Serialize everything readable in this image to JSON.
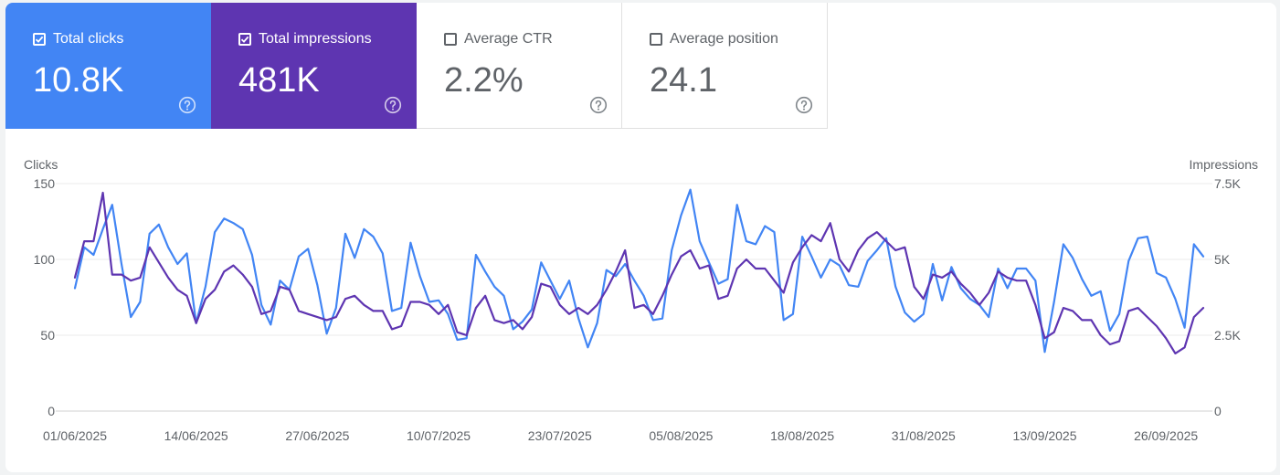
{
  "colors": {
    "clicks": "#4285f4",
    "impressions": "#5e35b1",
    "grid": "#ebebeb"
  },
  "metrics": {
    "clicks": {
      "label": "Total clicks",
      "value": "10.8K",
      "checked": true
    },
    "impressions": {
      "label": "Total impressions",
      "value": "481K",
      "checked": true
    },
    "ctr": {
      "label": "Average CTR",
      "value": "2.2%",
      "checked": false
    },
    "position": {
      "label": "Average position",
      "value": "24.1",
      "checked": false
    }
  },
  "chart_data": {
    "type": "line",
    "left_axis": {
      "label": "Clicks",
      "ylim": [
        0,
        150
      ],
      "ticks": [
        "0",
        "50",
        "100",
        "150"
      ],
      "tick_values": [
        0,
        50,
        100,
        150
      ]
    },
    "right_axis": {
      "label": "Impressions",
      "ylim": [
        0,
        7500
      ],
      "ticks": [
        "0",
        "2.5K",
        "5K",
        "7.5K"
      ],
      "tick_values": [
        0,
        2500,
        5000,
        7500
      ]
    },
    "x_tick_labels": [
      "01/06/2025",
      "14/06/2025",
      "27/06/2025",
      "10/07/2025",
      "23/07/2025",
      "05/08/2025",
      "18/08/2025",
      "31/08/2025",
      "13/09/2025",
      "26/09/2025"
    ],
    "x_tick_indices": [
      0,
      13,
      26,
      39,
      52,
      65,
      78,
      91,
      104,
      117
    ],
    "series": [
      {
        "name": "Clicks",
        "axis": "left",
        "values": [
          81,
          108,
          103,
          120,
          136,
          97,
          62,
          72,
          117,
          123,
          108,
          97,
          104,
          58,
          82,
          118,
          127,
          124,
          120,
          103,
          70,
          57,
          86,
          80,
          102,
          107,
          83,
          51,
          68,
          117,
          101,
          120,
          115,
          104,
          66,
          68,
          111,
          89,
          72,
          73,
          64,
          47,
          48,
          103,
          92,
          82,
          76,
          54,
          59,
          67,
          98,
          86,
          74,
          86,
          61,
          42,
          58,
          93,
          89,
          97,
          86,
          76,
          60,
          61,
          106,
          129,
          146,
          112,
          98,
          84,
          87,
          136,
          112,
          110,
          122,
          118,
          60,
          64,
          115,
          102,
          88,
          100,
          96,
          83,
          82,
          99,
          106,
          114,
          82,
          65,
          59,
          64,
          97,
          73,
          95,
          81,
          74,
          70,
          62,
          94,
          81,
          94,
          94,
          86,
          39,
          72,
          110,
          101,
          87,
          76,
          79,
          53,
          64,
          99,
          114,
          115,
          91,
          88,
          74,
          55,
          110,
          102
        ],
        "color": "#4285f4"
      },
      {
        "name": "Impressions",
        "axis": "right",
        "values": [
          4400,
          5600,
          5600,
          7200,
          4500,
          4500,
          4300,
          4400,
          5400,
          4900,
          4400,
          4000,
          3800,
          2900,
          3700,
          4000,
          4600,
          4800,
          4500,
          4100,
          3200,
          3300,
          4100,
          4000,
          3300,
          3200,
          3100,
          3000,
          3100,
          3700,
          3800,
          3500,
          3300,
          3300,
          2700,
          2800,
          3600,
          3600,
          3500,
          3200,
          3500,
          2600,
          2500,
          3400,
          3800,
          3000,
          2900,
          3000,
          2700,
          3100,
          4200,
          4100,
          3500,
          3200,
          3400,
          3200,
          3500,
          4000,
          4600,
          5300,
          3400,
          3500,
          3200,
          3800,
          4500,
          5100,
          5300,
          4700,
          4800,
          3700,
          3800,
          4700,
          5000,
          4700,
          4700,
          4300,
          3900,
          4900,
          5400,
          5800,
          5600,
          6200,
          5000,
          4600,
          5300,
          5700,
          5900,
          5600,
          5300,
          5400,
          4100,
          3700,
          4500,
          4400,
          4600,
          4200,
          3900,
          3500,
          3900,
          4600,
          4400,
          4300,
          4300,
          3500,
          2400,
          2600,
          3400,
          3300,
          3000,
          3000,
          2500,
          2200,
          2300,
          3300,
          3400,
          3100,
          2800,
          2400,
          1900,
          2100,
          3100,
          3400
        ],
        "color": "#5e35b1"
      }
    ]
  }
}
